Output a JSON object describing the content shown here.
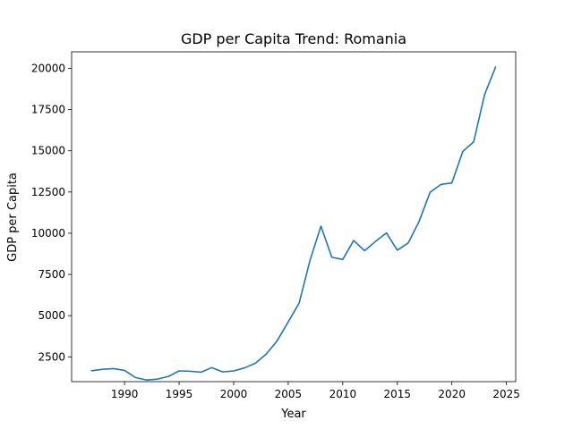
{
  "chart_data": {
    "type": "line",
    "title": "GDP per Capita Trend: Romania",
    "xlabel": "Year",
    "ylabel": "GDP per Capita",
    "xlim": [
      1985.15,
      2025.85
    ],
    "ylim": [
      1000,
      21000
    ],
    "xticks": [
      1990,
      1995,
      2000,
      2005,
      2010,
      2015,
      2020,
      2025
    ],
    "yticks": [
      2500,
      5000,
      7500,
      10000,
      12500,
      15000,
      17500,
      20000
    ],
    "grid": false,
    "legend": "none",
    "series": [
      {
        "color": "#1f77b4",
        "x": [
          1987,
          1988,
          1989,
          1990,
          1991,
          1992,
          1993,
          1994,
          1995,
          1996,
          1997,
          1998,
          1999,
          2000,
          2001,
          2002,
          2003,
          2004,
          2005,
          2006,
          2007,
          2008,
          2009,
          2010,
          2011,
          2012,
          2013,
          2014,
          2015,
          2016,
          2017,
          2018,
          2019,
          2020,
          2021,
          2022,
          2023,
          2024
        ],
        "y": [
          1660,
          1750,
          1790,
          1680,
          1250,
          1100,
          1150,
          1310,
          1650,
          1630,
          1570,
          1850,
          1590,
          1650,
          1830,
          2120,
          2680,
          3490,
          4620,
          5760,
          8360,
          10430,
          8540,
          8410,
          9560,
          8940,
          9500,
          10020,
          8970,
          9410,
          10720,
          12480,
          12960,
          13050,
          14960,
          15540,
          18410,
          20070
        ]
      }
    ]
  }
}
